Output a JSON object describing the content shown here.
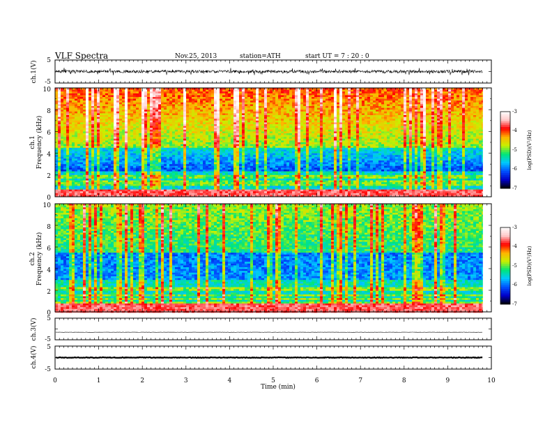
{
  "header": {
    "title": "VLF  Spectra",
    "date": "Nov.25, 2013",
    "station": "station=ATH",
    "start_time": "start  UT  =   7 : 20 : 0"
  },
  "chart_data": [
    {
      "type": "line",
      "panel": "ch1-waveform",
      "ylabel": "ch.1(V)",
      "ylim": [
        -5,
        5
      ],
      "yticks": [
        "5",
        "-5"
      ],
      "x_range_min": [
        0,
        9.8
      ],
      "level": 0,
      "envelope": [
        -0.6,
        0.6
      ]
    },
    {
      "type": "heatmap",
      "panel": "ch1-spectrogram",
      "ylabel_lines": [
        "ch.1",
        "Frequency  (kHz)"
      ],
      "ylim": [
        0,
        10
      ],
      "yticks": [
        "0",
        "2",
        "4",
        "6",
        "8",
        "10"
      ],
      "x_range_min": [
        0,
        9.8
      ],
      "colorbar": {
        "label": "log(PSD)(V²/Hz)",
        "range": [
          -7,
          -3
        ],
        "ticks": [
          "-3",
          "-4",
          "-5",
          "-6",
          "-7"
        ],
        "colors": [
          "#000000",
          "#0000c8",
          "#0050ff",
          "#00c8ff",
          "#00e678",
          "#c8f000",
          "#ffb400",
          "#ff0000",
          "#ffc8c8",
          "#ffffff"
        ]
      }
    },
    {
      "type": "heatmap",
      "panel": "ch2-spectrogram",
      "ylabel_lines": [
        "ch.2",
        "Frequency  (kHz)"
      ],
      "ylim": [
        0,
        10
      ],
      "yticks": [
        "0",
        "2",
        "4",
        "6",
        "8",
        "10"
      ],
      "x_range_min": [
        0,
        9.8
      ],
      "colorbar": {
        "label": "log(PSD)(V²/Hz)",
        "range": [
          -7,
          -3
        ],
        "ticks": [
          "-3",
          "-4",
          "-5",
          "-6",
          "-7"
        ],
        "colors": [
          "#000000",
          "#0000c8",
          "#0050ff",
          "#00c8ff",
          "#00e678",
          "#c8f000",
          "#ffb400",
          "#ff0000",
          "#ffc8c8",
          "#ffffff"
        ]
      }
    },
    {
      "type": "line",
      "panel": "ch3-waveform",
      "ylabel": "ch.3(V)",
      "ylim": [
        -5,
        5
      ],
      "yticks": [
        "5",
        "-5"
      ],
      "x_range_min": [
        0,
        9.8
      ],
      "level": -1.5,
      "envelope": [
        -0.05,
        0.05
      ]
    },
    {
      "type": "line",
      "panel": "ch4-waveform",
      "ylabel": "ch.4(V)",
      "ylim": [
        -5,
        5
      ],
      "yticks": [
        "5",
        "-5"
      ],
      "x_range_min": [
        0,
        9.8
      ],
      "level": 0,
      "envelope": [
        -0.15,
        0.15
      ]
    }
  ],
  "x_axis": {
    "label": "Time  (min)",
    "range": [
      0,
      10
    ],
    "ticks": [
      "0",
      "1",
      "2",
      "3",
      "4",
      "5",
      "6",
      "7",
      "8",
      "9",
      "10"
    ]
  }
}
